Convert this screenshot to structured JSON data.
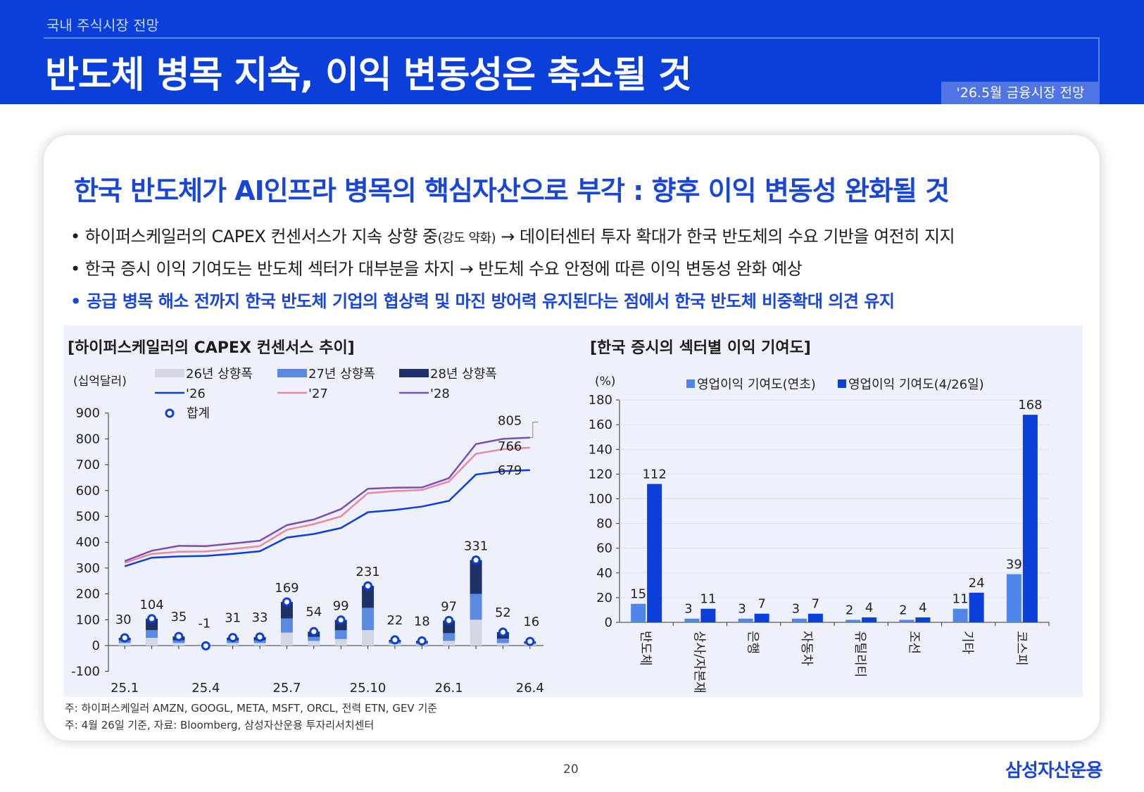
{
  "header": {
    "section": "국내 주식시장 전망",
    "title": "반도체 병목 지속, 이익 변동성은 축소될 것",
    "tag": "'26.5월 금융시장 전망"
  },
  "subtitle": "한국 반도체가 AI인프라 병목의 핵심자산으로 부각 : 향후 이익 변동성 완화될 것",
  "bullets": {
    "b1_main": "• 하이퍼스케일러의 CAPEX 컨센서스가 지속 상향 중",
    "b1_small": "(강도 약화)",
    "b1_rest": " → 데이터센터 투자 확대가 한국 반도체의 수요 기반을 여전히 지지",
    "b2": "• 한국 증시 이익 기여도는 반도체 섹터가 대부분을 차지 → 반도체 수요 안정에 따른 이익 변동성 완화 예상",
    "b3": "• 공급 병목 해소 전까지 한국 반도체 기업의 협상력 및 마진 방어력 유지된다는 점에서 한국 반도체 비중확대 의견 유지"
  },
  "chart_data": [
    {
      "type": "bar",
      "title": "[하이퍼스케일러의 CAPEX 컨센서스 추이]",
      "unit_label": "(십억달러)",
      "ylim": [
        -100,
        900
      ],
      "yticks": [
        -100,
        0,
        100,
        200,
        300,
        400,
        500,
        600,
        700,
        800,
        900
      ],
      "x": [
        "25.1",
        "25.2",
        "25.3",
        "25.4",
        "25.5",
        "25.6",
        "25.7",
        "25.8",
        "25.9",
        "25.10",
        "25.11",
        "25.12",
        "26.1",
        "26.2",
        "26.3",
        "26.4"
      ],
      "xtick_labels": [
        "25.1",
        "25.4",
        "25.7",
        "25.10",
        "26.1",
        "26.4"
      ],
      "stacked_series": [
        {
          "name": "26년 상향폭",
          "color": "#d3d6e3",
          "values": [
            10,
            30,
            10,
            -1,
            10,
            10,
            50,
            18,
            25,
            60,
            8,
            5,
            18,
            100,
            10,
            5
          ]
        },
        {
          "name": "27년 상향폭",
          "color": "#5b8be0",
          "values": [
            10,
            30,
            10,
            0,
            10,
            10,
            55,
            16,
            34,
            86,
            7,
            6,
            30,
            100,
            17,
            5
          ]
        },
        {
          "name": "28년 상향폭",
          "color": "#1e3168",
          "values": [
            10,
            44,
            15,
            0,
            11,
            13,
            64,
            20,
            40,
            85,
            7,
            7,
            49,
            131,
            25,
            6
          ]
        }
      ],
      "total_series": {
        "name": "합계",
        "values": [
          30,
          104,
          35,
          -1,
          31,
          33,
          169,
          54,
          99,
          231,
          22,
          18,
          97,
          331,
          52,
          16
        ]
      },
      "line_series": [
        {
          "name": "'26",
          "color": "#0a3fd9",
          "values": [
            307,
            340,
            345,
            347,
            355,
            365,
            418,
            432,
            455,
            516,
            525,
            538,
            560,
            662,
            675,
            679
          ]
        },
        {
          "name": "'27",
          "color": "#e8899e",
          "values": [
            320,
            355,
            363,
            364,
            374,
            385,
            448,
            470,
            500,
            590,
            598,
            602,
            635,
            742,
            760,
            766
          ]
        },
        {
          "name": "'28",
          "color": "#7c4db3",
          "values": [
            327,
            367,
            386,
            385,
            395,
            406,
            466,
            488,
            528,
            607,
            611,
            612,
            648,
            780,
            800,
            805
          ]
        }
      ],
      "end_labels": [
        "805",
        "766",
        "679"
      ]
    },
    {
      "type": "bar",
      "title": "[한국 증시의 섹터별 이익 기여도]",
      "unit_label": "(%)",
      "ylim": [
        0,
        180
      ],
      "yticks": [
        0,
        20,
        40,
        60,
        80,
        100,
        120,
        140,
        160,
        180
      ],
      "categories": [
        "반도체",
        "상사/자본재",
        "은행",
        "자동차",
        "유틸리티",
        "조선",
        "기타",
        "코스피"
      ],
      "series": [
        {
          "name": "영업이익 기여도(연초)",
          "color": "#4f86e8",
          "values": [
            15,
            3,
            3,
            3,
            2,
            2,
            11,
            39
          ]
        },
        {
          "name": "영업이익 기여도(4/26일)",
          "color": "#0a3fd9",
          "values": [
            112,
            11,
            7,
            7,
            4,
            4,
            24,
            168
          ]
        }
      ]
    }
  ],
  "notes": {
    "n1": "주: 하이퍼스케일러 AMZN, GOOGL, META, MSFT, ORCL, 전력 ETN, GEV 기준",
    "n2": "주: 4월 26일 기준, 자료: Bloomberg, 삼성자산운용 투자리서치센터"
  },
  "footer": {
    "page": "20",
    "logo": "삼성자산운용"
  }
}
